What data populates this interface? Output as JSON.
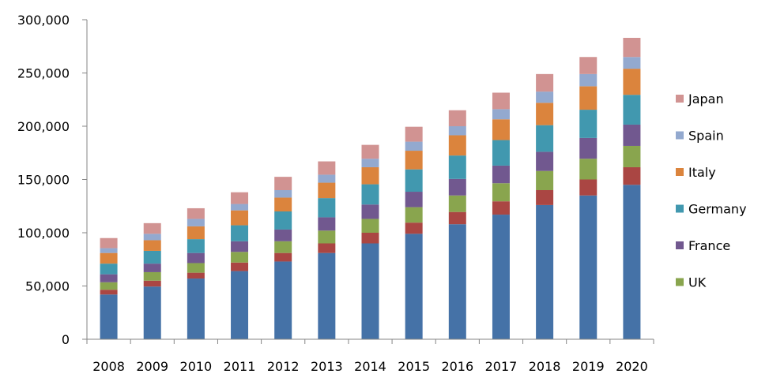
{
  "chart_data": {
    "type": "bar",
    "stacked": true,
    "title": "",
    "xlabel": "",
    "ylabel": "",
    "ylim": [
      0,
      300000
    ],
    "yticks": [
      0,
      50000,
      100000,
      150000,
      200000,
      250000,
      300000
    ],
    "ytick_labels": [
      "0",
      "50,000",
      "100,000",
      "150,000",
      "200,000",
      "250,000",
      "300,000"
    ],
    "grid": false,
    "legend_position": "right",
    "categories": [
      "2008",
      "2009",
      "2010",
      "2011",
      "2012",
      "2013",
      "2014",
      "2015",
      "2016",
      "2017",
      "2018",
      "2019",
      "2020"
    ],
    "series": [
      {
        "color": "#4572A7",
        "values": [
          42000,
          49500,
          57000,
          64000,
          73000,
          81000,
          90000,
          99000,
          108000,
          117000,
          126000,
          135000,
          145000
        ]
      },
      {
        "color": "#AA4643",
        "values": [
          4500,
          5500,
          5500,
          8000,
          8000,
          9000,
          10000,
          10500,
          11500,
          12500,
          14000,
          15000,
          16500
        ]
      },
      {
        "name": "UK",
        "color": "#89A54E",
        "values": [
          7000,
          8000,
          9000,
          10000,
          11000,
          12000,
          13000,
          14500,
          15500,
          17000,
          18000,
          19500,
          20000
        ]
      },
      {
        "name": "France",
        "color": "#71588F",
        "values": [
          7500,
          8000,
          9500,
          10000,
          11000,
          12500,
          13500,
          14500,
          15500,
          16500,
          18000,
          19500,
          20000
        ]
      },
      {
        "name": "Germany",
        "color": "#4198AF",
        "values": [
          10000,
          12000,
          13000,
          15000,
          17000,
          18000,
          19000,
          21000,
          22000,
          24000,
          25000,
          26500,
          28000
        ]
      },
      {
        "name": "Italy",
        "color": "#DB843D",
        "values": [
          10000,
          10000,
          12000,
          14000,
          13000,
          14500,
          16000,
          17500,
          19000,
          19500,
          21000,
          22000,
          24500
        ]
      },
      {
        "name": "Spain",
        "color": "#93A9CF",
        "values": [
          4500,
          6000,
          7000,
          6000,
          7000,
          7500,
          8000,
          8500,
          8500,
          9500,
          10500,
          11500,
          11000
        ]
      },
      {
        "name": "Japan",
        "color": "#D19392",
        "values": [
          9500,
          10000,
          10000,
          11000,
          12500,
          12500,
          13000,
          14000,
          15000,
          15500,
          16500,
          16000,
          18000
        ]
      }
    ]
  }
}
